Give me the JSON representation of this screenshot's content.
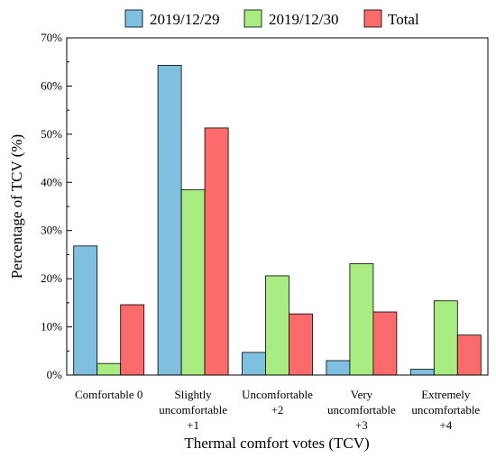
{
  "chart_data": {
    "type": "bar",
    "title": "",
    "xlabel": "Thermal comfort votes (TCV)",
    "ylabel": "Percentage of TCV (%)",
    "ylim": [
      0,
      70
    ],
    "yticks": [
      "0%",
      "10%",
      "20%",
      "30%",
      "40%",
      "50%",
      "60%",
      "70%"
    ],
    "categories": [
      [
        "Comfortable 0"
      ],
      [
        "Slightly",
        "uncomfortable",
        "+1"
      ],
      [
        "Uncomfortable",
        "+2"
      ],
      [
        "Very",
        "uncomfortable",
        "+3"
      ],
      [
        "Extremely",
        "uncomfortable",
        "+4"
      ]
    ],
    "series": [
      {
        "name": "2019/12/29",
        "color": "#7fbfdf",
        "values": [
          26.8,
          64.3,
          4.7,
          3.0,
          1.2
        ]
      },
      {
        "name": "2019/12/30",
        "color": "#a8ec82",
        "values": [
          2.4,
          38.5,
          20.6,
          23.1,
          15.4
        ]
      },
      {
        "name": "Total",
        "color": "#fb6b6b",
        "values": [
          14.6,
          51.3,
          12.7,
          13.1,
          8.3
        ]
      }
    ],
    "legend_position": "top",
    "grid": false
  }
}
